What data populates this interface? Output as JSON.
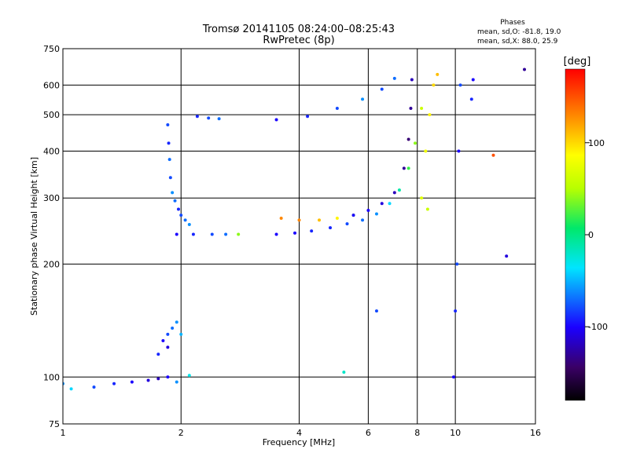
{
  "title_line1": "Tromsø 20141105 08:24:00–08:25:43",
  "title_line2": "RwPretec (8p)",
  "stats": {
    "heading": "Phases",
    "line1": "mean, sd,O: -81.8, 19.0",
    "line2": "mean, sd,X:  88.0, 25.9"
  },
  "colorbar": {
    "label": "[deg]",
    "ticks": [
      {
        "value": 100,
        "label": "100"
      },
      {
        "value": 0,
        "label": "0"
      },
      {
        "value": -100,
        "label": "-100"
      }
    ],
    "range": [
      -180,
      180
    ]
  },
  "chart_data": {
    "type": "scatter",
    "title": "Tromsø 20141105 08:24:00–08:25:43",
    "subtitle": "RwPretec (8p)",
    "xlabel": "Frequency [MHz]",
    "ylabel": "Stationary phase Virtual Height [km]",
    "xscale": "log",
    "yscale": "log",
    "xlim": [
      1,
      16
    ],
    "ylim": [
      75,
      750
    ],
    "x_ticks": [
      {
        "value": 1,
        "label": "1"
      },
      {
        "value": 2,
        "label": "2"
      },
      {
        "value": 4,
        "label": "4"
      },
      {
        "value": 6,
        "label": "6"
      },
      {
        "value": 8,
        "label": "8"
      },
      {
        "value": 10,
        "label": "10"
      },
      {
        "value": 16,
        "label": "16"
      }
    ],
    "y_ticks": [
      {
        "value": 75,
        "label": "75"
      },
      {
        "value": 100,
        "label": "100"
      },
      {
        "value": 200,
        "label": "200"
      },
      {
        "value": 300,
        "label": "300"
      },
      {
        "value": 400,
        "label": "400"
      },
      {
        "value": 500,
        "label": "500"
      },
      {
        "value": 600,
        "label": "600"
      },
      {
        "value": 750,
        "label": "750"
      }
    ],
    "grid": true,
    "color_scale": "rainbow",
    "color_label": "[deg]",
    "series": [
      {
        "values": [
          [
            1.0,
            96,
            -60
          ],
          [
            1.05,
            93,
            -40
          ],
          [
            1.2,
            94,
            -80
          ],
          [
            1.35,
            96,
            -90
          ],
          [
            1.5,
            97,
            -100
          ],
          [
            1.65,
            98,
            -110
          ],
          [
            1.75,
            99,
            -120
          ],
          [
            1.85,
            100,
            -100
          ],
          [
            1.95,
            97,
            -60
          ],
          [
            2.1,
            101,
            -30
          ]
        ]
      },
      {
        "values": [
          [
            1.75,
            115,
            -90
          ],
          [
            1.8,
            125,
            -100
          ],
          [
            1.85,
            130,
            -80
          ],
          [
            1.9,
            135,
            -70
          ],
          [
            1.95,
            140,
            -60
          ],
          [
            2.0,
            130,
            -50
          ],
          [
            1.85,
            120,
            -110
          ]
        ]
      },
      {
        "values": [
          [
            1.85,
            470,
            -80
          ],
          [
            1.86,
            420,
            -90
          ],
          [
            1.87,
            380,
            -70
          ],
          [
            1.88,
            340,
            -80
          ],
          [
            1.9,
            310,
            -60
          ],
          [
            1.93,
            295,
            -70
          ],
          [
            1.97,
            280,
            -90
          ],
          [
            2.0,
            270,
            -80
          ],
          [
            2.05,
            262,
            -70
          ],
          [
            2.1,
            255,
            -60
          ]
        ]
      },
      {
        "values": [
          [
            1.95,
            240,
            -100
          ],
          [
            2.15,
            240,
            -90
          ],
          [
            2.4,
            240,
            -80
          ],
          [
            2.6,
            240,
            -70
          ],
          [
            2.8,
            240,
            40
          ]
        ]
      },
      {
        "values": [
          [
            2.2,
            495,
            -90
          ],
          [
            2.35,
            490,
            -80
          ],
          [
            2.5,
            488,
            -70
          ]
        ]
      },
      {
        "values": [
          [
            3.5,
            240,
            -100
          ],
          [
            3.9,
            242,
            -100
          ],
          [
            4.3,
            245,
            -90
          ],
          [
            4.8,
            250,
            -90
          ],
          [
            5.3,
            256,
            -80
          ],
          [
            5.8,
            262,
            -70
          ],
          [
            6.3,
            272,
            -60
          ],
          [
            6.8,
            290,
            -40
          ],
          [
            7.2,
            315,
            -10
          ],
          [
            7.6,
            360,
            20
          ],
          [
            7.9,
            420,
            40
          ],
          [
            8.2,
            520,
            60
          ]
        ]
      },
      {
        "values": [
          [
            3.6,
            265,
            130
          ],
          [
            4.0,
            262,
            130
          ],
          [
            4.5,
            262,
            110
          ],
          [
            5.0,
            265,
            90
          ],
          [
            5.5,
            270,
            40
          ]
        ]
      },
      {
        "values": [
          [
            3.5,
            485,
            -100
          ],
          [
            4.2,
            495,
            -90
          ],
          [
            5.0,
            520,
            -80
          ],
          [
            5.8,
            550,
            -60
          ],
          [
            6.5,
            585,
            -80
          ],
          [
            7.0,
            625,
            -70
          ]
        ]
      },
      {
        "values": [
          [
            5.5,
            270,
            -100
          ],
          [
            6.0,
            278,
            -100
          ],
          [
            6.5,
            290,
            -110
          ],
          [
            7.0,
            310,
            -120
          ],
          [
            7.4,
            360,
            -130
          ],
          [
            7.6,
            430,
            -140
          ],
          [
            7.7,
            520,
            -130
          ],
          [
            7.75,
            620,
            -120
          ]
        ]
      },
      {
        "values": [
          [
            8.2,
            300,
            70
          ],
          [
            8.4,
            400,
            80
          ],
          [
            8.6,
            500,
            90
          ],
          [
            8.8,
            600,
            100
          ],
          [
            9.0,
            640,
            110
          ],
          [
            8.5,
            280,
            60
          ]
        ]
      },
      {
        "values": [
          [
            9.9,
            100,
            -100
          ],
          [
            10.0,
            150,
            -90
          ],
          [
            10.1,
            200,
            -80
          ],
          [
            10.2,
            400,
            -100
          ],
          [
            10.3,
            600,
            -80
          ],
          [
            11.0,
            550,
            -90
          ],
          [
            11.1,
            620,
            -100
          ]
        ]
      },
      {
        "values": [
          [
            12.5,
            390,
            150
          ],
          [
            13.5,
            210,
            -110
          ],
          [
            15.0,
            660,
            -130
          ],
          [
            6.3,
            150,
            -80
          ],
          [
            5.2,
            103,
            -20
          ]
        ]
      }
    ]
  }
}
